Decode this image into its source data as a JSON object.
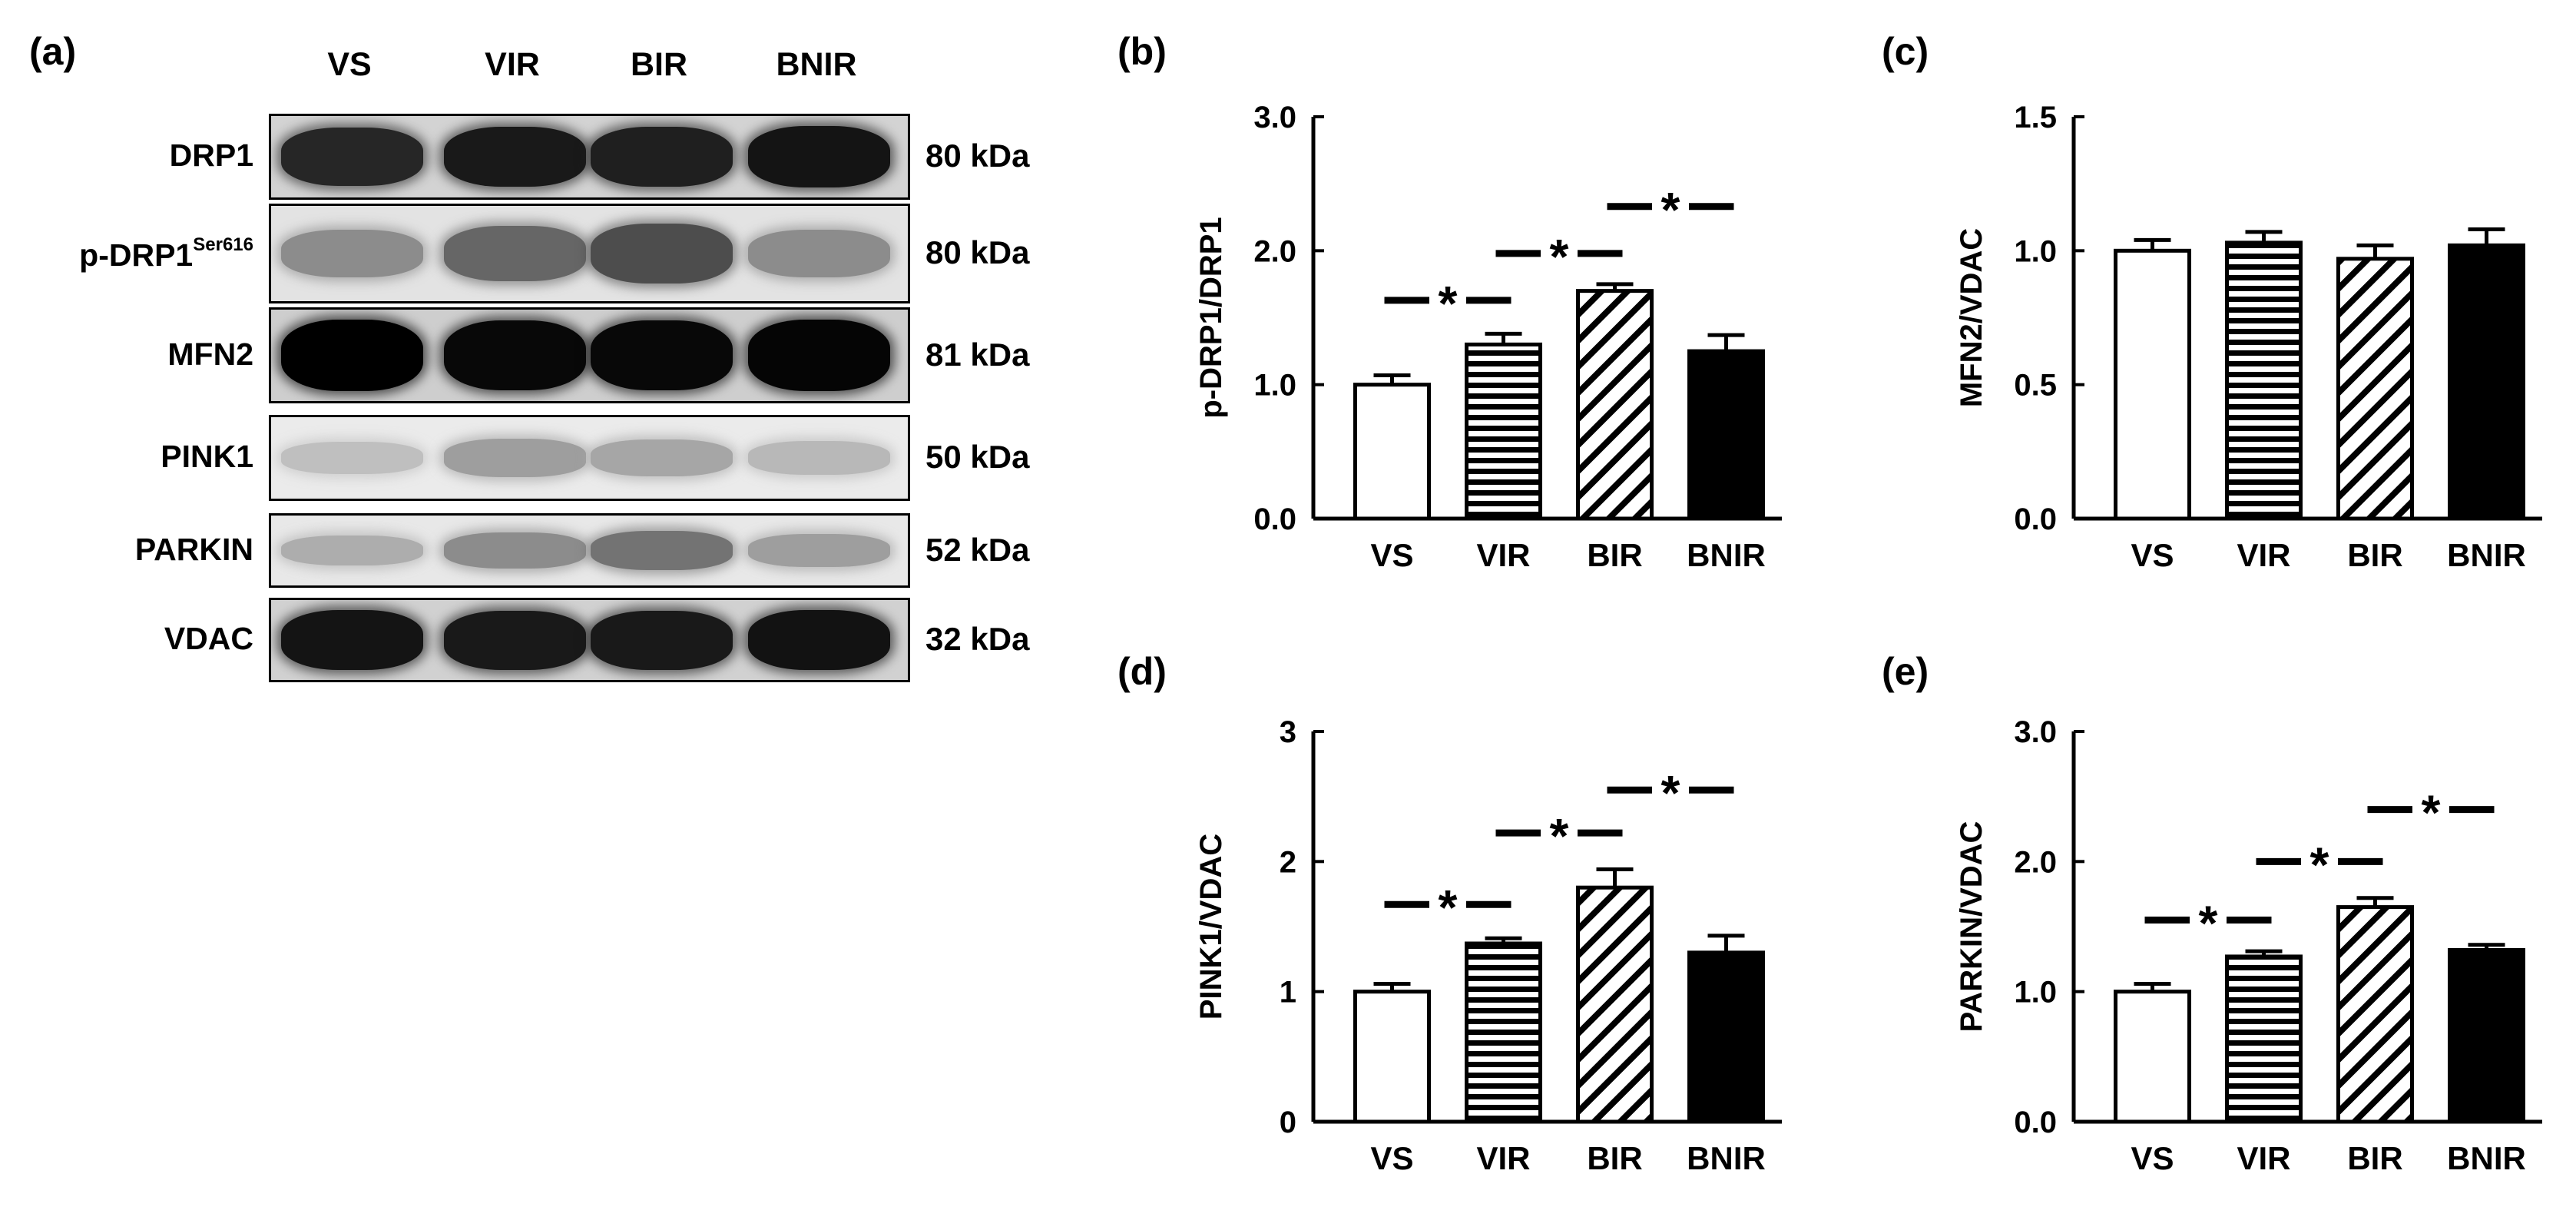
{
  "figure": {
    "panels": {
      "a": "(a)",
      "b": "(b)",
      "c": "(c)",
      "d": "(d)",
      "e": "(e)"
    },
    "blot": {
      "lanes": [
        "VS",
        "VIR",
        "BIR",
        "BNIR"
      ],
      "rows": [
        {
          "protein": "DRP1",
          "superscript": "",
          "size": "80 kDa",
          "intensity": [
            0.85,
            0.9,
            0.88,
            0.92
          ]
        },
        {
          "protein": "p-DRP1",
          "superscript": "Ser616",
          "size": "80 kDa",
          "intensity": [
            0.45,
            0.6,
            0.7,
            0.45
          ]
        },
        {
          "protein": "MFN2",
          "superscript": "",
          "size": "81 kDa",
          "intensity": [
            1.0,
            0.97,
            0.97,
            0.98
          ]
        },
        {
          "protein": "PINK1",
          "superscript": "",
          "size": "50 kDa",
          "intensity": [
            0.25,
            0.38,
            0.35,
            0.28
          ]
        },
        {
          "protein": "PARKIN",
          "superscript": "",
          "size": "52 kDa",
          "intensity": [
            0.32,
            0.45,
            0.55,
            0.38
          ]
        },
        {
          "protein": "VDAC",
          "superscript": "",
          "size": "32 kDa",
          "intensity": [
            0.92,
            0.9,
            0.9,
            0.93
          ]
        }
      ]
    },
    "colors": {
      "axis": "#000000",
      "bar_fill_black": "#000000",
      "bar_fill_white": "#ffffff",
      "blot_band": "#000000"
    },
    "significance_marker": "*"
  },
  "chart_data": [
    {
      "id": "b",
      "type": "bar",
      "categories": [
        "VS",
        "VIR",
        "BIR",
        "BNIR"
      ],
      "patterns": [
        "open",
        "horizontal-stripes",
        "diagonal-hatch",
        "solid"
      ],
      "values": [
        1.0,
        1.3,
        1.7,
        1.25
      ],
      "errors": [
        0.07,
        0.08,
        0.05,
        0.12
      ],
      "ylabel": "p-DRP1/DRP1",
      "ylim": [
        0,
        3.0
      ],
      "yticks": [
        "0.0",
        "1.0",
        "2.0",
        "3.0"
      ],
      "significance": [
        {
          "from": 0,
          "to": 1,
          "y": 1.63
        },
        {
          "from": 1,
          "to": 2,
          "y": 1.98
        },
        {
          "from": 2,
          "to": 3,
          "y": 2.33
        }
      ]
    },
    {
      "id": "c",
      "type": "bar",
      "categories": [
        "VS",
        "VIR",
        "BIR",
        "BNIR"
      ],
      "patterns": [
        "open",
        "horizontal-stripes",
        "diagonal-hatch",
        "solid"
      ],
      "values": [
        1.0,
        1.03,
        0.97,
        1.02
      ],
      "errors": [
        0.04,
        0.04,
        0.05,
        0.06
      ],
      "ylabel": "MFN2/VDAC",
      "ylim": [
        0,
        1.5
      ],
      "yticks": [
        "0.0",
        "0.5",
        "1.0",
        "1.5"
      ],
      "significance": []
    },
    {
      "id": "d",
      "type": "bar",
      "categories": [
        "VS",
        "VIR",
        "BIR",
        "BNIR"
      ],
      "patterns": [
        "open",
        "horizontal-stripes",
        "diagonal-hatch",
        "solid"
      ],
      "values": [
        1.0,
        1.37,
        1.8,
        1.3
      ],
      "errors": [
        0.06,
        0.04,
        0.14,
        0.13
      ],
      "ylabel": "PINK1/VDAC",
      "ylim": [
        0,
        3
      ],
      "yticks": [
        "0",
        "1",
        "2",
        "3"
      ],
      "significance": [
        {
          "from": 0,
          "to": 1,
          "y": 1.67
        },
        {
          "from": 1,
          "to": 2,
          "y": 2.22
        },
        {
          "from": 2,
          "to": 3,
          "y": 2.55
        }
      ]
    },
    {
      "id": "e",
      "type": "bar",
      "categories": [
        "VS",
        "VIR",
        "BIR",
        "BNIR"
      ],
      "patterns": [
        "open",
        "horizontal-stripes",
        "diagonal-hatch",
        "solid"
      ],
      "values": [
        1.0,
        1.27,
        1.65,
        1.32
      ],
      "errors": [
        0.06,
        0.04,
        0.07,
        0.04
      ],
      "ylabel": "PARKIN/VDAC",
      "ylim": [
        0,
        3.0
      ],
      "yticks": [
        "0.0",
        "1.0",
        "2.0",
        "3.0"
      ],
      "significance": [
        {
          "from": 0,
          "to": 1,
          "y": 1.55
        },
        {
          "from": 1,
          "to": 2,
          "y": 2.0
        },
        {
          "from": 2,
          "to": 3,
          "y": 2.4
        }
      ]
    }
  ]
}
